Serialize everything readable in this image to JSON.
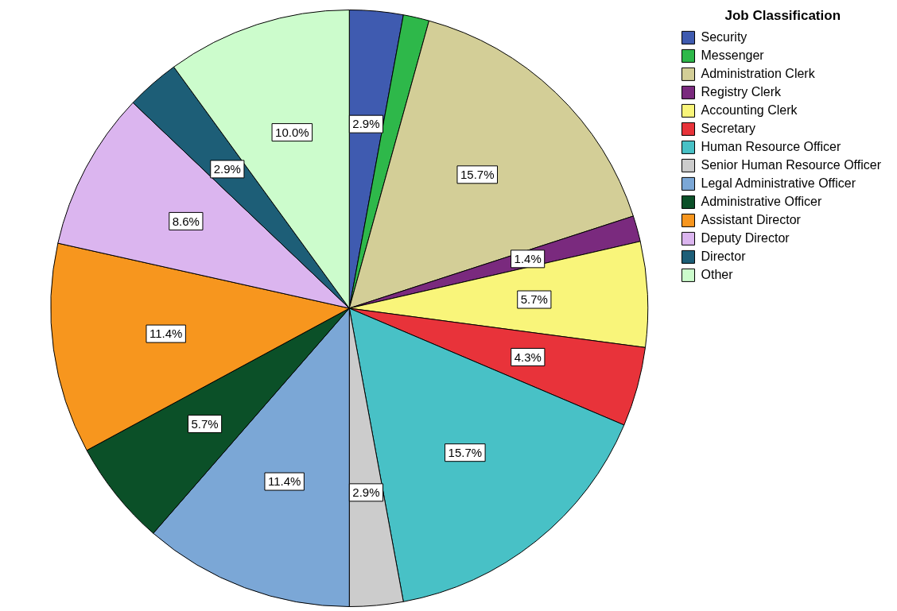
{
  "chart_data": {
    "type": "pie",
    "legend_title": "Job Classification",
    "legend": "right",
    "categories": [
      "Security",
      "Messenger",
      "Administration Clerk",
      "Registry Clerk",
      "Accounting Clerk",
      "Secretary",
      "Human Resource Officer",
      "Senior Human Resource Officer",
      "Legal Administrative Officer",
      "Administrative Officer",
      "Assistant Director",
      "Deputy Director",
      "Director",
      "Other"
    ],
    "values": [
      2.9,
      1.4,
      15.7,
      1.4,
      5.7,
      4.3,
      15.7,
      2.9,
      11.4,
      5.7,
      11.4,
      8.6,
      2.9,
      10.0
    ],
    "value_labels": [
      "2.9%",
      null,
      "15.7%",
      "1.4%",
      "5.7%",
      "4.3%",
      "15.7%",
      "2.9%",
      "11.4%",
      "5.7%",
      "11.4%",
      "8.6%",
      "2.9%",
      "10.0%"
    ],
    "colors": [
      "#3f5bb0",
      "#2eb84a",
      "#d3ce97",
      "#7a2a7e",
      "#f9f57a",
      "#e8333a",
      "#48c1c6",
      "#cccccc",
      "#7ba7d6",
      "#0b5028",
      "#f7961e",
      "#dbb5ef",
      "#1d5e77",
      "#ccfccc"
    ]
  }
}
